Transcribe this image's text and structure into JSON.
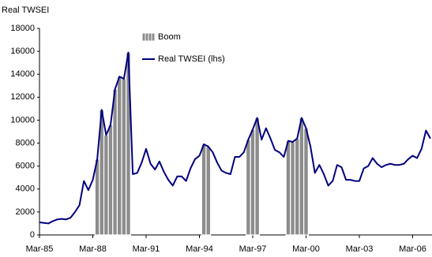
{
  "chart_data": {
    "type": "line",
    "y_axis_title": "Real TWSEI",
    "categories": [
      "Mar-85",
      null,
      null,
      null,
      null,
      null,
      null,
      null,
      null,
      null,
      null,
      null,
      "Mar-88",
      null,
      null,
      null,
      null,
      null,
      null,
      null,
      null,
      null,
      null,
      null,
      "Mar-91",
      null,
      null,
      null,
      null,
      null,
      null,
      null,
      null,
      null,
      null,
      null,
      "Mar-94",
      null,
      null,
      null,
      null,
      null,
      null,
      null,
      null,
      null,
      null,
      null,
      "Mar-97",
      null,
      null,
      null,
      null,
      null,
      null,
      null,
      null,
      null,
      null,
      null,
      "Mar-00",
      null,
      null,
      null,
      null,
      null,
      null,
      null,
      null,
      null,
      null,
      null,
      "Mar-03",
      null,
      null,
      null,
      null,
      null,
      null,
      null,
      null,
      null,
      null,
      null,
      "Mar-06",
      null,
      null,
      null,
      null
    ],
    "series": [
      {
        "name": "Boom",
        "type": "bar",
        "color": "#8c8c8c",
        "values": [
          null,
          null,
          null,
          null,
          null,
          null,
          null,
          null,
          null,
          null,
          null,
          null,
          null,
          6600,
          10900,
          8700,
          9600,
          12700,
          13800,
          13600,
          15900,
          null,
          null,
          null,
          null,
          null,
          null,
          null,
          null,
          null,
          null,
          null,
          null,
          null,
          null,
          null,
          null,
          7900,
          7700,
          null,
          null,
          null,
          null,
          null,
          null,
          null,
          null,
          8300,
          9200,
          10200,
          null,
          null,
          null,
          null,
          null,
          null,
          8200,
          8100,
          8400,
          10200,
          9300,
          null,
          null,
          null,
          null,
          null,
          null,
          null,
          null,
          null,
          null,
          null,
          null,
          null,
          null,
          null,
          null,
          null,
          null,
          null,
          null,
          null,
          null,
          null,
          null,
          null,
          null,
          null,
          null
        ]
      },
      {
        "name": "Real TWSEI (lhs)",
        "type": "line",
        "color": "#000080",
        "values": [
          1100,
          1050,
          1000,
          1200,
          1350,
          1400,
          1350,
          1500,
          2000,
          2600,
          4700,
          3900,
          4800,
          6600,
          10900,
          8700,
          9600,
          12700,
          13800,
          13600,
          15900,
          5300,
          5400,
          6300,
          7500,
          6200,
          5700,
          6400,
          5500,
          4800,
          4300,
          5100,
          5100,
          4700,
          5800,
          6600,
          6900,
          7900,
          7700,
          7200,
          6300,
          5600,
          5400,
          5300,
          6800,
          6800,
          7200,
          8300,
          9200,
          10200,
          8300,
          9300,
          8400,
          7400,
          7200,
          6800,
          8200,
          8100,
          8400,
          10200,
          9300,
          7700,
          5400,
          6100,
          5300,
          4300,
          4700,
          6100,
          5900,
          4800,
          4800,
          4700,
          4700,
          5800,
          6000,
          6700,
          6200,
          5900,
          6100,
          6200,
          6100,
          6100,
          6200,
          6600,
          6900,
          6700,
          7500,
          9100,
          8400
        ]
      }
    ],
    "ylim": [
      0,
      18000
    ],
    "yticks": [
      0,
      2000,
      4000,
      6000,
      8000,
      10000,
      12000,
      14000,
      16000,
      18000
    ],
    "grid": false
  }
}
